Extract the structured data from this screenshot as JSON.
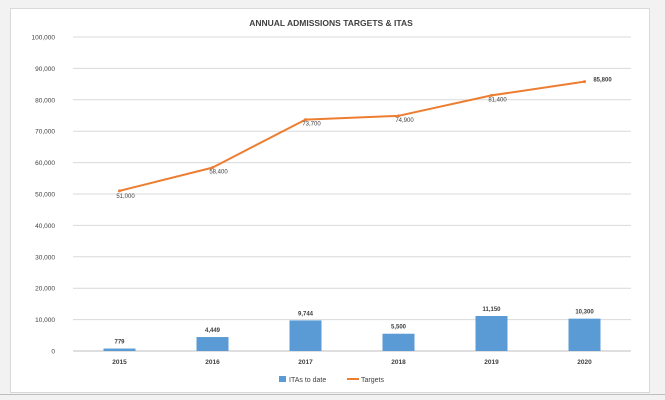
{
  "chart_data": {
    "type": "bar+line",
    "title": "ANNUAL ADMISSIONS TARGETS & ITAS",
    "categories": [
      "2015",
      "2016",
      "2017",
      "2018",
      "2019",
      "2020"
    ],
    "series": [
      {
        "name": "ITAs to date",
        "kind": "bar",
        "color": "#5b9bd5",
        "values": [
          779,
          4449,
          9744,
          5500,
          11150,
          10300
        ],
        "labels": [
          "779",
          "4,449",
          "9,744",
          "5,500",
          "11,150",
          "10,300"
        ]
      },
      {
        "name": "Targets",
        "kind": "line",
        "color": "#ed7d31",
        "values": [
          51000,
          58400,
          73700,
          74900,
          81400,
          85800
        ],
        "labels": [
          "51,000",
          "58,400",
          "73,700",
          "74,900",
          "81,400",
          "85,800"
        ]
      }
    ],
    "ylim": [
      0,
      100000
    ],
    "yticks": [
      "0",
      "10,000",
      "20,000",
      "30,000",
      "40,000",
      "50,000",
      "60,000",
      "70,000",
      "80,000",
      "90,000",
      "100,000"
    ],
    "grid": true,
    "legend_position": "bottom-center",
    "xlabel": "",
    "ylabel": ""
  }
}
